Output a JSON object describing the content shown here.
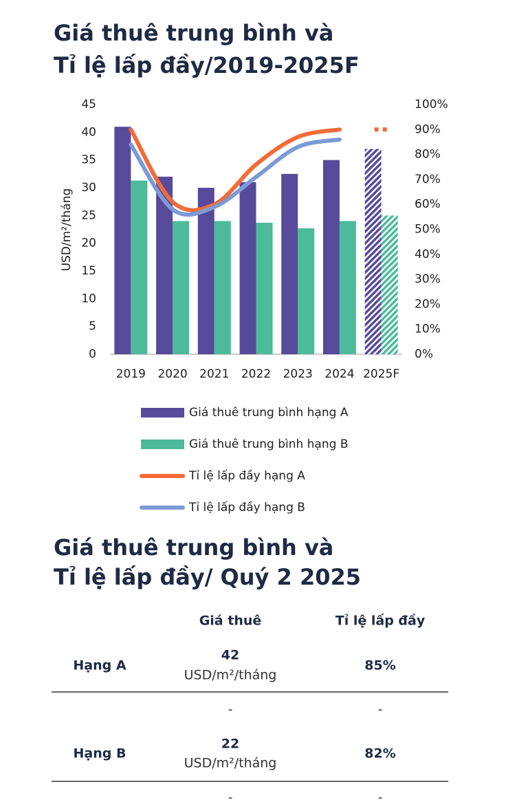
{
  "chart_data": {
    "type": "combo",
    "title": [
      "Giá thuê trung bình và",
      "Tỉ lệ lấp đầy/2019-2025F"
    ],
    "y_label": "USD/m²/tháng",
    "categories": [
      "2019",
      "2020",
      "2021",
      "2022",
      "2023",
      "2024",
      "2025F"
    ],
    "forecast_index": 6,
    "series": [
      {
        "name": "Giá thuê trung bình hạng A",
        "type": "bar",
        "color": "#574a9a",
        "values": [
          41,
          32,
          30,
          31,
          32.5,
          35,
          37
        ]
      },
      {
        "name": "Giá thuê trung bình hạng B",
        "type": "bar",
        "color": "#4dbb9a",
        "values": [
          31.3,
          24,
          24,
          23.7,
          22.7,
          24,
          25
        ]
      },
      {
        "name": "Tỉ lệ lấp đầy hạng A",
        "type": "line",
        "axis": "y2",
        "color": "#f26b38",
        "values": [
          90,
          61,
          60,
          76,
          87,
          90,
          90
        ]
      },
      {
        "name": "Tỉ lệ lấp đầy hạng B",
        "type": "line",
        "axis": "y2",
        "color": "#7b9bd6",
        "values": [
          84,
          58,
          59,
          71,
          83,
          86,
          null
        ]
      }
    ],
    "ylim": [
      0,
      45
    ],
    "yticks": [
      0,
      5,
      10,
      15,
      20,
      25,
      30,
      35,
      40,
      45
    ],
    "y2lim": [
      0,
      100
    ],
    "y2ticks": [
      {
        "value": 0,
        "label": "0%"
      },
      {
        "value": 10,
        "label": "10%"
      },
      {
        "value": 20,
        "label": "20%"
      },
      {
        "value": 30,
        "label": "30%"
      },
      {
        "value": 40,
        "label": "40%"
      },
      {
        "value": 50,
        "label": "50%"
      },
      {
        "value": 60,
        "label": "60%"
      },
      {
        "value": 70,
        "label": "70%"
      },
      {
        "value": 80,
        "label": "80%"
      },
      {
        "value": 90,
        "label": "90%"
      },
      {
        "value": 100,
        "label": "100%"
      }
    ],
    "grid": false,
    "legend": "bottom"
  },
  "table": {
    "title": [
      "Giá thuê trung bình và",
      "Tỉ lệ lấp đầy/ Quý 2 2025"
    ],
    "columns": [
      "Giá thuê",
      "Tỉ lệ lấp đầy"
    ],
    "rows": [
      {
        "label": "Hạng A",
        "rent": 42,
        "unit": "USD/m²/tháng",
        "occupancy": "85%"
      },
      {
        "rent": "-",
        "occupancy": "-"
      },
      {
        "label": "Hạng B",
        "rent": 22,
        "unit": "USD/m²/tháng",
        "occupancy": "82%"
      },
      {
        "rent": "-",
        "occupancy": "-"
      }
    ]
  }
}
